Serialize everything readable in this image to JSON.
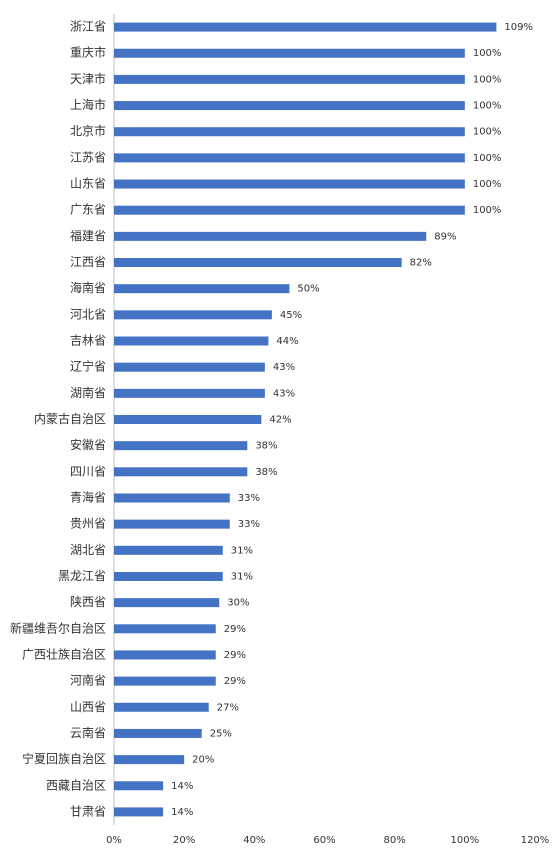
{
  "chart_data": {
    "type": "barh",
    "color": "#4472c4",
    "categories": [
      "浙江省",
      "重庆市",
      "天津市",
      "上海市",
      "北京市",
      "江苏省",
      "山东省",
      "广东省",
      "福建省",
      "江西省",
      "海南省",
      "河北省",
      "吉林省",
      "辽宁省",
      "湖南省",
      "内蒙古自治区",
      "安徽省",
      "四川省",
      "青海省",
      "贵州省",
      "湖北省",
      "黑龙江省",
      "陕西省",
      "新疆维吾尔自治区",
      "广西壮族自治区",
      "河南省",
      "山西省",
      "云南省",
      "宁夏回族自治区",
      "西藏自治区",
      "甘肃省"
    ],
    "values": [
      109,
      100,
      100,
      100,
      100,
      100,
      100,
      100,
      89,
      82,
      50,
      45,
      44,
      43,
      43,
      42,
      38,
      38,
      33,
      33,
      31,
      31,
      30,
      29,
      29,
      29,
      27,
      25,
      20,
      14,
      14
    ],
    "value_labels": [
      "109%",
      "100%",
      "100%",
      "100%",
      "100%",
      "100%",
      "100%",
      "100%",
      "89%",
      "82%",
      "50%",
      "45%",
      "44%",
      "43%",
      "43%",
      "42%",
      "38%",
      "38%",
      "33%",
      "33%",
      "31%",
      "31%",
      "30%",
      "29%",
      "29%",
      "29%",
      "27%",
      "25%",
      "20%",
      "14%",
      "14%"
    ],
    "xlim": [
      0,
      120
    ],
    "xticks": [
      {
        "value": 0,
        "label": "0%"
      },
      {
        "value": 20,
        "label": "20%"
      },
      {
        "value": 40,
        "label": "40%"
      },
      {
        "value": 60,
        "label": "60%"
      },
      {
        "value": 80,
        "label": "80%"
      },
      {
        "value": 100,
        "label": "100%"
      },
      {
        "value": 120,
        "label": "120%"
      }
    ],
    "grid": false
  }
}
